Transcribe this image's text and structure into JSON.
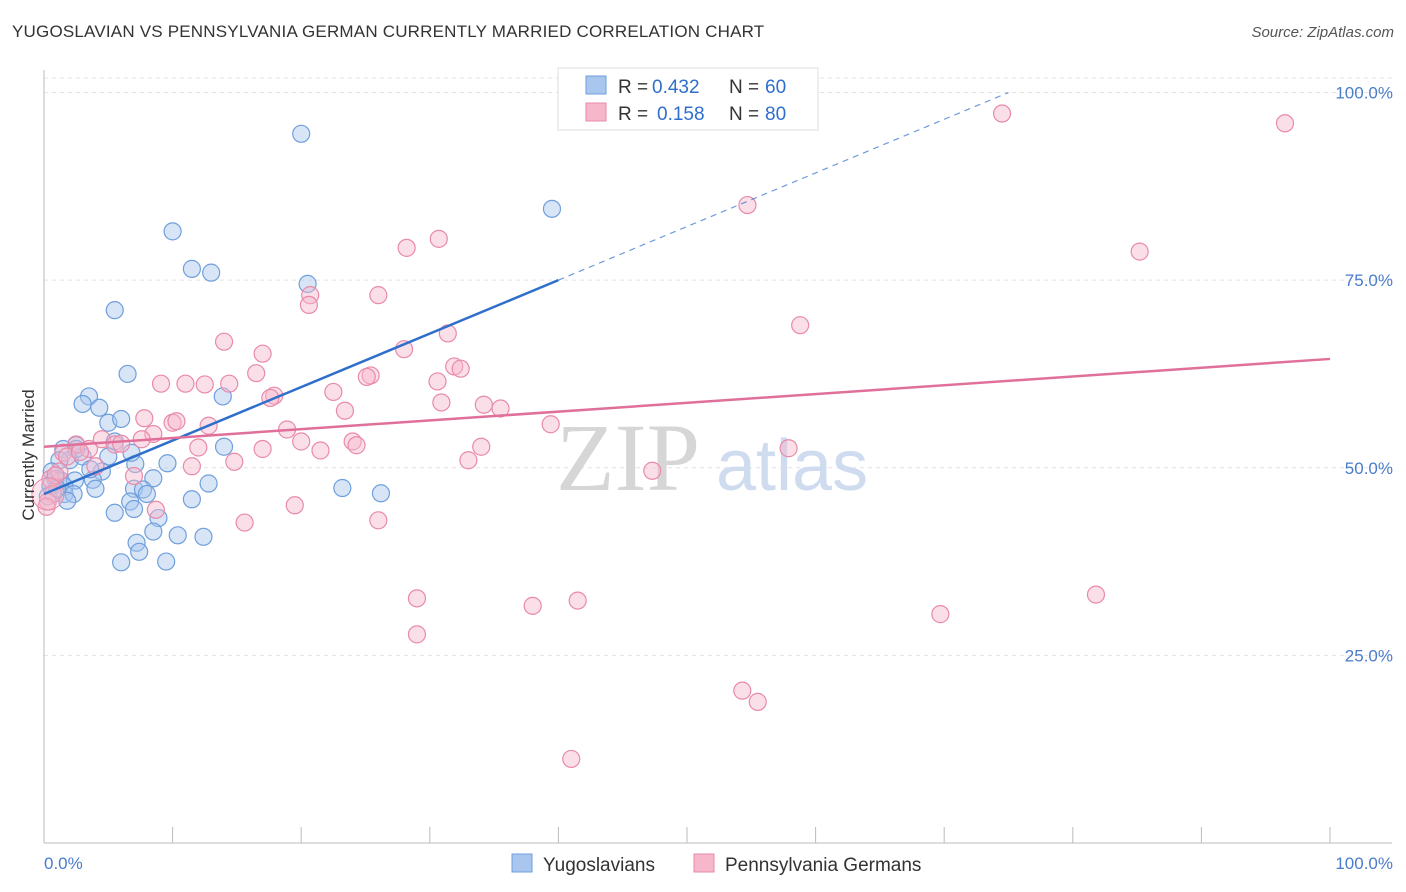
{
  "header": {
    "title": "YUGOSLAVIAN VS PENNSYLVANIA GERMAN CURRENTLY MARRIED CORRELATION CHART",
    "source": "Source: ZipAtlas.com"
  },
  "watermark": {
    "zip": "ZIP",
    "atlas": "atlas"
  },
  "legend_top": {
    "rows": [
      {
        "r_label": "R =",
        "r_value": "0.432",
        "n_label": "N =",
        "n_value": "60"
      },
      {
        "r_label": "R =",
        "r_value": "0.158",
        "n_label": "N =",
        "n_value": "80"
      }
    ]
  },
  "legend_bottom": {
    "items": [
      "Yugoslavians",
      "Pennsylvania Germans"
    ]
  },
  "colors": {
    "blue_fill": "#a9c6ee",
    "blue_stroke": "#6f9fdc",
    "blue_line": "#2f6fcc",
    "pink_fill": "#f6b7cb",
    "pink_stroke": "#e98aa9",
    "pink_line": "#e0709a",
    "tick_text": "#4a7cc9",
    "grid": "#e3e3e3"
  },
  "chart_data": {
    "type": "scatter",
    "title": "YUGOSLAVIAN VS PENNSYLVANIA GERMAN CURRENTLY MARRIED CORRELATION CHART",
    "xlabel": "",
    "ylabel": "Currently Married",
    "xlim": [
      0,
      100
    ],
    "ylim": [
      0,
      103
    ],
    "x_tick_labels": [
      "0.0%",
      "100.0%"
    ],
    "y_ticks": [
      25,
      50,
      75,
      100
    ],
    "y_tick_labels": [
      "25.0%",
      "50.0%",
      "75.0%",
      "100.0%"
    ],
    "grid": true,
    "legend_position": "top-center",
    "series": [
      {
        "name": "Yugoslavians",
        "color": "#a9c6ee",
        "r": 0.432,
        "n": 60,
        "trend": {
          "x": [
            0,
            40
          ],
          "y": [
            46.5,
            75
          ],
          "dashed_to": [
            75,
            100
          ]
        },
        "points": [
          [
            20,
            94.5
          ],
          [
            39.5,
            84.5
          ],
          [
            10,
            81.5
          ],
          [
            13,
            76
          ],
          [
            11.5,
            76.5
          ],
          [
            20.5,
            74.5
          ],
          [
            5.5,
            71
          ],
          [
            6.5,
            62.5
          ],
          [
            3.5,
            59.5
          ],
          [
            3,
            58.5
          ],
          [
            4.3,
            58
          ],
          [
            13.9,
            59.5
          ],
          [
            5,
            56
          ],
          [
            6,
            56.5
          ],
          [
            5.5,
            53.5
          ],
          [
            2.5,
            53
          ],
          [
            1.5,
            52.5
          ],
          [
            5,
            51.5
          ],
          [
            2,
            51
          ],
          [
            1.2,
            51
          ],
          [
            3,
            51.5
          ],
          [
            7.1,
            50.5
          ],
          [
            9.6,
            50.6
          ],
          [
            4.5,
            49.5
          ],
          [
            0.6,
            49.5
          ],
          [
            0.9,
            48.5
          ],
          [
            1.3,
            48.3
          ],
          [
            2.4,
            48.3
          ],
          [
            3.8,
            48.4
          ],
          [
            8.5,
            48.6
          ],
          [
            12.8,
            47.9
          ],
          [
            23.2,
            47.3
          ],
          [
            1.6,
            47.5
          ],
          [
            4,
            47.2
          ],
          [
            7,
            47.2
          ],
          [
            7.7,
            47.1
          ],
          [
            0.5,
            47.6
          ],
          [
            1.6,
            46.5
          ],
          [
            0.3,
            46.2
          ],
          [
            2.3,
            46.5
          ],
          [
            8,
            46.5
          ],
          [
            26.2,
            46.6
          ],
          [
            1.8,
            45.6
          ],
          [
            6.7,
            45.5
          ],
          [
            11.5,
            45.8
          ],
          [
            5.5,
            44
          ],
          [
            7,
            44.5
          ],
          [
            8.9,
            43.3
          ],
          [
            8.5,
            41.5
          ],
          [
            10.4,
            41
          ],
          [
            12.4,
            40.8
          ],
          [
            7.2,
            40
          ],
          [
            7.4,
            38.8
          ],
          [
            6,
            37.4
          ],
          [
            9.5,
            37.5
          ],
          [
            14,
            52.8
          ],
          [
            2.5,
            52.5
          ],
          [
            6.8,
            52
          ],
          [
            3.6,
            49.8
          ],
          [
            1.0,
            47.2
          ]
        ]
      },
      {
        "name": "Pennsylvania Germans",
        "color": "#f6b7cb",
        "r": 0.158,
        "n": 80,
        "trend": {
          "x": [
            0,
            100
          ],
          "y": [
            52.8,
            64.5
          ]
        },
        "points": [
          [
            74.5,
            97.2
          ],
          [
            96.5,
            95.9
          ],
          [
            54.7,
            85
          ],
          [
            28.2,
            79.3
          ],
          [
            30.7,
            80.5
          ],
          [
            85.2,
            78.8
          ],
          [
            20.7,
            73
          ],
          [
            26,
            73
          ],
          [
            20.6,
            71.7
          ],
          [
            58.8,
            69
          ],
          [
            28,
            65.8
          ],
          [
            31.4,
            67.9
          ],
          [
            14,
            66.8
          ],
          [
            17,
            65.2
          ],
          [
            16.5,
            62.6
          ],
          [
            25.4,
            62.3
          ],
          [
            25.1,
            62.1
          ],
          [
            31.9,
            63.5
          ],
          [
            32.4,
            63.2
          ],
          [
            9.1,
            61.2
          ],
          [
            11,
            61.2
          ],
          [
            12.5,
            61.1
          ],
          [
            14.4,
            61.2
          ],
          [
            30.6,
            61.5
          ],
          [
            22.5,
            60.1
          ],
          [
            17.9,
            59.6
          ],
          [
            17.6,
            59.3
          ],
          [
            30.9,
            58.7
          ],
          [
            34.2,
            58.4
          ],
          [
            35.5,
            57.9
          ],
          [
            23.4,
            57.6
          ],
          [
            7.8,
            56.6
          ],
          [
            10,
            56
          ],
          [
            10.3,
            56.2
          ],
          [
            12.8,
            55.6
          ],
          [
            39.4,
            55.8
          ],
          [
            18.9,
            55.1
          ],
          [
            8.5,
            54.5
          ],
          [
            4.5,
            53.8
          ],
          [
            5.5,
            53.1
          ],
          [
            6,
            53.2
          ],
          [
            7.6,
            53.8
          ],
          [
            20,
            53.5
          ],
          [
            24,
            53.5
          ],
          [
            24.3,
            53
          ],
          [
            34,
            52.8
          ],
          [
            57.9,
            52.6
          ],
          [
            2.5,
            53.1
          ],
          [
            3.5,
            52.5
          ],
          [
            12,
            52.7
          ],
          [
            17,
            52.5
          ],
          [
            21.5,
            52.3
          ],
          [
            33,
            51
          ],
          [
            1.5,
            52
          ],
          [
            1.8,
            51.5
          ],
          [
            14.8,
            50.8
          ],
          [
            11.5,
            50.2
          ],
          [
            47.3,
            49.6
          ],
          [
            7,
            48.9
          ],
          [
            0.5,
            48.5
          ],
          [
            1.2,
            49.5
          ],
          [
            0.7,
            46.5
          ],
          [
            0.3,
            45.5
          ],
          [
            0.2,
            44.8
          ],
          [
            19.5,
            45
          ],
          [
            8.7,
            44.4
          ],
          [
            26,
            43
          ],
          [
            15.6,
            42.7
          ],
          [
            29,
            32.6
          ],
          [
            38,
            31.6
          ],
          [
            41.5,
            32.3
          ],
          [
            69.7,
            30.5
          ],
          [
            81.8,
            33.1
          ],
          [
            29,
            27.8
          ],
          [
            54.3,
            20.3
          ],
          [
            55.5,
            18.8
          ],
          [
            41,
            11.2
          ],
          [
            0.9,
            49
          ],
          [
            4,
            50.2
          ],
          [
            2.8,
            52.1
          ]
        ]
      }
    ]
  }
}
